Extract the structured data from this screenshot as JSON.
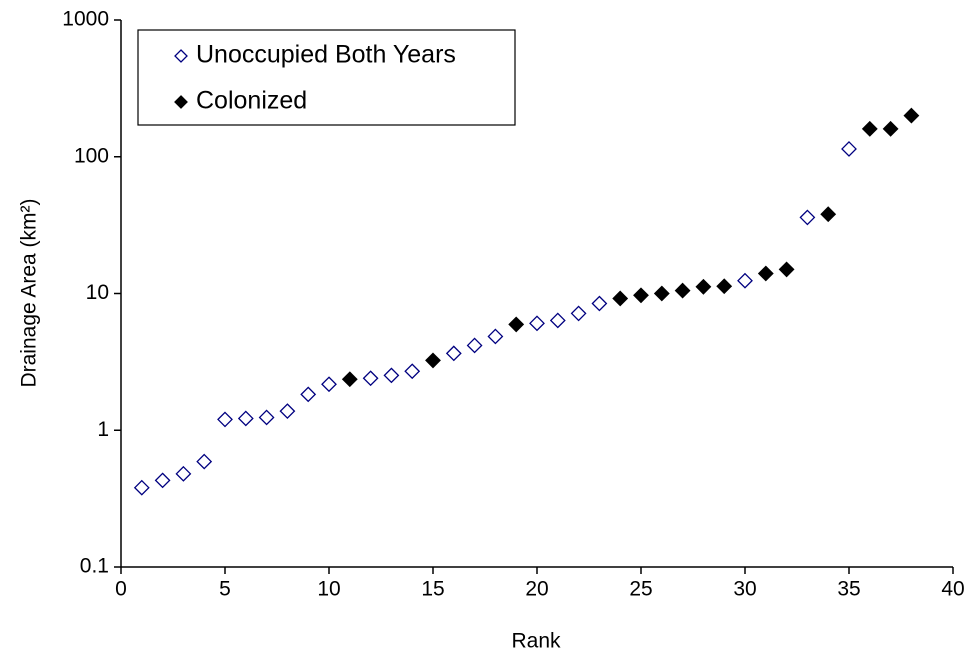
{
  "chart_data": {
    "type": "scatter",
    "x_label": "Rank",
    "y_label": "Drainage Area (km²)",
    "xlim": [
      0,
      40
    ],
    "xticks": [
      0,
      5,
      10,
      15,
      20,
      25,
      30,
      35,
      40
    ],
    "ylim": [
      0.1,
      1000
    ],
    "yticks": [
      0.1,
      1,
      10,
      100,
      1000
    ],
    "y_scale": "log",
    "grid": false,
    "legend": "top-left",
    "series": [
      {
        "name": "Unoccupied Both Years",
        "color": "#000080",
        "filled": false,
        "x": [
          1,
          2,
          3,
          4,
          5,
          6,
          7,
          8,
          9,
          10,
          12,
          13,
          14,
          16,
          17,
          18,
          20,
          21,
          22,
          23,
          30,
          33,
          35
        ],
        "values": [
          0.38,
          0.43,
          0.48,
          0.59,
          1.2,
          1.22,
          1.24,
          1.38,
          1.83,
          2.17,
          2.4,
          2.52,
          2.7,
          3.65,
          4.17,
          4.85,
          6.05,
          6.35,
          7.15,
          8.45,
          12.4,
          36,
          114
        ]
      },
      {
        "name": "Colonized",
        "color": "#000000",
        "filled": true,
        "x": [
          11,
          15,
          19,
          24,
          25,
          26,
          27,
          28,
          29,
          31,
          32,
          34,
          36,
          37,
          38
        ],
        "values": [
          2.36,
          3.24,
          5.94,
          9.2,
          9.7,
          10,
          10.5,
          11.2,
          11.3,
          14,
          15,
          38,
          160,
          160,
          200
        ]
      }
    ]
  }
}
